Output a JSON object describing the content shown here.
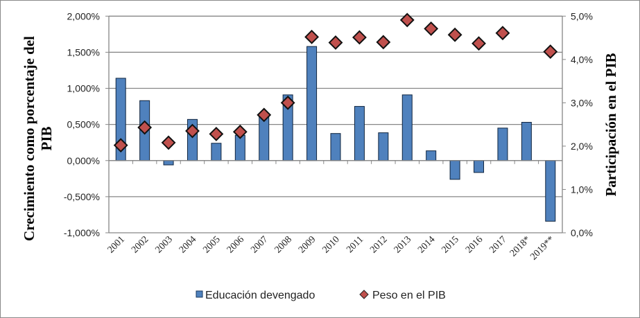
{
  "chart_data": {
    "type": "bar",
    "categories": [
      "2001",
      "2002",
      "2003",
      "2004",
      "2005",
      "2006",
      "2007",
      "2008",
      "2009",
      "2010",
      "2011",
      "2012",
      "2013",
      "2014",
      "2015",
      "2016",
      "2017",
      "2018*",
      "2019**"
    ],
    "series": [
      {
        "name": "Educación devengado",
        "axis": "left",
        "kind": "bar",
        "color": "#4F81BD",
        "values": [
          1.14,
          0.83,
          -0.06,
          0.57,
          0.24,
          0.35,
          0.62,
          0.91,
          1.58,
          0.375,
          0.75,
          0.385,
          0.91,
          0.135,
          -0.26,
          -0.165,
          0.45,
          0.53,
          -0.84
        ]
      },
      {
        "name": "Peso en el PIB",
        "axis": "right",
        "kind": "scatter",
        "color": "#C0504D",
        "marker": "diamond",
        "values": [
          2.02,
          2.43,
          2.08,
          2.35,
          2.28,
          2.33,
          2.72,
          3.0,
          4.52,
          4.39,
          4.51,
          4.4,
          4.91,
          4.71,
          4.57,
          4.37,
          4.61,
          null,
          4.18
        ]
      }
    ],
    "ylabel": "Crecimiento como  porcentaje del PIB",
    "ylabel_lines": [
      "Crecimiento como  porcentaje del",
      "PIB"
    ],
    "y2label": "Participación en el PIB",
    "ylim": [
      -1.0,
      2.0
    ],
    "y2lim": [
      0,
      5
    ],
    "yticks": [
      "-1,000%",
      "-0,500%",
      "0,000%",
      "0,500%",
      "1,000%",
      "1,500%",
      "2,000%"
    ],
    "y2ticks": [
      "0,0%",
      "1,0%",
      "2,0%",
      "3,0%",
      "4,0%",
      "5,0%"
    ],
    "grid": true,
    "legend_position": "bottom"
  }
}
